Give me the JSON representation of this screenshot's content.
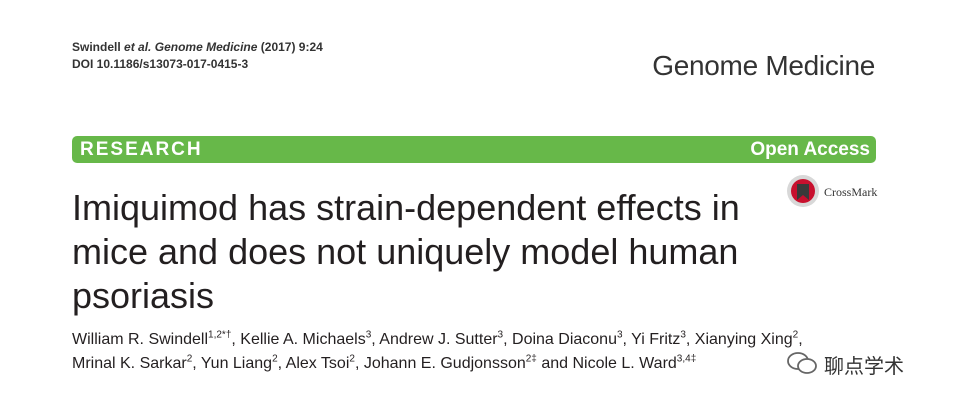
{
  "header": {
    "citation": {
      "author": "Swindell",
      "etal": "et al.",
      "journal": "Genome Medicine",
      "details": "(2017) 9:24"
    },
    "doi": "DOI 10.1186/s13073-017-0415-3",
    "journal_logo": "Genome Medicine"
  },
  "banner": {
    "type": "RESEARCH",
    "access": "Open Access"
  },
  "crossmark": "CrossMark",
  "title": "Imiquimod has strain-dependent effects in mice and does not uniquely model human psoriasis",
  "authors": [
    {
      "name": "William R. Swindell",
      "affiliations": "1,2*†",
      "separator": ","
    },
    {
      "name": "Kellie A. Michaels",
      "affiliations": "3",
      "separator": ","
    },
    {
      "name": "Andrew J. Sutter",
      "affiliations": "3",
      "separator": ","
    },
    {
      "name": "Doina Diaconu",
      "affiliations": "3",
      "separator": ","
    },
    {
      "name": "Yi Fritz",
      "affiliations": "3",
      "separator": ","
    },
    {
      "name": "Xianying Xing",
      "affiliations": "2",
      "separator": ","
    },
    {
      "name": "Mrinal K. Sarkar",
      "affiliations": "2",
      "separator": ","
    },
    {
      "name": "Yun Liang",
      "affiliations": "2",
      "separator": ","
    },
    {
      "name": "Alex Tsoi",
      "affiliations": "2",
      "separator": ","
    },
    {
      "name": "Johann E. Gudjonsson",
      "affiliations": "2‡",
      "separator": "and"
    },
    {
      "name": "Nicole L. Ward",
      "affiliations": "3,4‡"
    }
  ],
  "watermark": "聊点学术"
}
